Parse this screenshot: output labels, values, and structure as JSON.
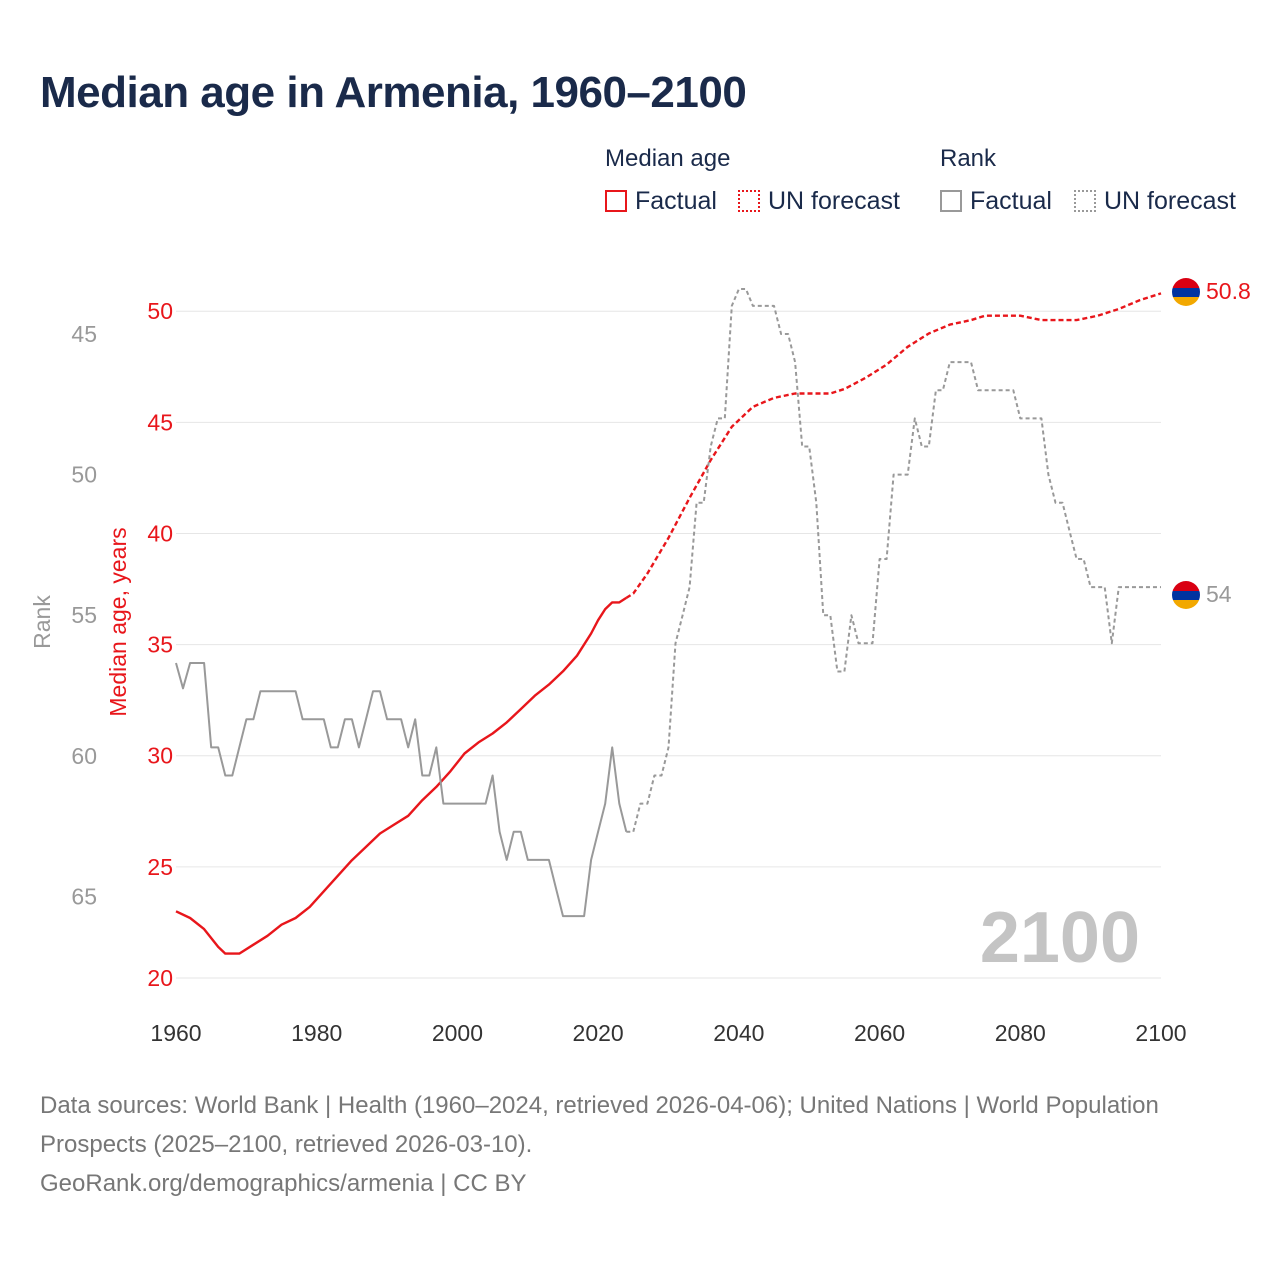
{
  "title": "Median age in Armenia, 1960–2100",
  "legend": {
    "median_heading": "Median age",
    "rank_heading": "Rank",
    "factual": "Factual",
    "forecast": "UN forecast"
  },
  "colors": {
    "median": "#e8161b",
    "rank": "#999999",
    "title": "#1a2a4a",
    "year_watermark": "#c4c4c4"
  },
  "chart_data": {
    "type": "line",
    "title": "Median age in Armenia, 1960–2100",
    "xlabel": "",
    "ylabel": "Median age, years",
    "ylabel_secondary": "Rank",
    "xlim": [
      1960,
      2100
    ],
    "ylim": [
      20,
      51
    ],
    "ylim_secondary_inverted": [
      43.4,
      67.9
    ],
    "x_ticks": [
      "1960",
      "1980",
      "2000",
      "2020",
      "2040",
      "2060",
      "2080",
      "2100"
    ],
    "y_ticks": [
      "20",
      "25",
      "30",
      "35",
      "40",
      "45",
      "50"
    ],
    "y_ticks_secondary": [
      "45",
      "50",
      "55",
      "60",
      "65"
    ],
    "year_watermark": "2100",
    "end_labels": {
      "median": "50.8",
      "rank": "54"
    },
    "factual_end_year": 2024,
    "series": [
      {
        "name": "Median age",
        "axis": "left",
        "points": [
          [
            1960,
            23
          ],
          [
            1962,
            22.7
          ],
          [
            1964,
            22.2
          ],
          [
            1966,
            21.4
          ],
          [
            1967,
            21.1
          ],
          [
            1969,
            21.1
          ],
          [
            1971,
            21.5
          ],
          [
            1973,
            21.9
          ],
          [
            1975,
            22.4
          ],
          [
            1977,
            22.7
          ],
          [
            1979,
            23.2
          ],
          [
            1981,
            23.9
          ],
          [
            1983,
            24.6
          ],
          [
            1985,
            25.3
          ],
          [
            1987,
            25.9
          ],
          [
            1989,
            26.5
          ],
          [
            1991,
            26.9
          ],
          [
            1993,
            27.3
          ],
          [
            1995,
            28
          ],
          [
            1997,
            28.6
          ],
          [
            1999,
            29.3
          ],
          [
            2001,
            30.1
          ],
          [
            2003,
            30.6
          ],
          [
            2005,
            31
          ],
          [
            2007,
            31.5
          ],
          [
            2009,
            32.1
          ],
          [
            2011,
            32.7
          ],
          [
            2013,
            33.2
          ],
          [
            2015,
            33.8
          ],
          [
            2017,
            34.5
          ],
          [
            2019,
            35.5
          ],
          [
            2020,
            36.1
          ],
          [
            2021,
            36.6
          ],
          [
            2022,
            36.9
          ],
          [
            2023,
            36.9
          ],
          [
            2024,
            37.1
          ],
          [
            2025,
            37.3
          ],
          [
            2027,
            38.2
          ],
          [
            2030,
            39.8
          ],
          [
            2033,
            41.6
          ],
          [
            2036,
            43.3
          ],
          [
            2039,
            44.8
          ],
          [
            2042,
            45.7
          ],
          [
            2045,
            46.1
          ],
          [
            2048,
            46.3
          ],
          [
            2050,
            46.3
          ],
          [
            2053,
            46.3
          ],
          [
            2055,
            46.5
          ],
          [
            2058,
            47
          ],
          [
            2061,
            47.6
          ],
          [
            2064,
            48.4
          ],
          [
            2067,
            49
          ],
          [
            2070,
            49.4
          ],
          [
            2073,
            49.6
          ],
          [
            2075,
            49.8
          ],
          [
            2078,
            49.8
          ],
          [
            2080,
            49.8
          ],
          [
            2083,
            49.6
          ],
          [
            2088,
            49.6
          ],
          [
            2091,
            49.8
          ],
          [
            2094,
            50.1
          ],
          [
            2097,
            50.5
          ],
          [
            2100,
            50.8
          ]
        ]
      },
      {
        "name": "Rank",
        "axis": "right",
        "points": [
          [
            1960,
            56.7
          ],
          [
            1961,
            57.6
          ],
          [
            1962,
            56.7
          ],
          [
            1963,
            56.7
          ],
          [
            1964,
            56.7
          ],
          [
            1965,
            59.7
          ],
          [
            1966,
            59.7
          ],
          [
            1967,
            60.7
          ],
          [
            1968,
            60.7
          ],
          [
            1969,
            59.7
          ],
          [
            1970,
            58.7
          ],
          [
            1971,
            58.7
          ],
          [
            1972,
            57.7
          ],
          [
            1973,
            57.7
          ],
          [
            1974,
            57.7
          ],
          [
            1975,
            57.7
          ],
          [
            1976,
            57.7
          ],
          [
            1977,
            57.7
          ],
          [
            1978,
            58.7
          ],
          [
            1979,
            58.7
          ],
          [
            1980,
            58.7
          ],
          [
            1981,
            58.7
          ],
          [
            1982,
            59.7
          ],
          [
            1983,
            59.7
          ],
          [
            1984,
            58.7
          ],
          [
            1985,
            58.7
          ],
          [
            1986,
            59.7
          ],
          [
            1987,
            58.7
          ],
          [
            1988,
            57.7
          ],
          [
            1989,
            57.7
          ],
          [
            1990,
            58.7
          ],
          [
            1991,
            58.7
          ],
          [
            1992,
            58.7
          ],
          [
            1993,
            59.7
          ],
          [
            1994,
            58.7
          ],
          [
            1995,
            60.7
          ],
          [
            1996,
            60.7
          ],
          [
            1997,
            59.7
          ],
          [
            1998,
            61.7
          ],
          [
            1999,
            61.7
          ],
          [
            2000,
            61.7
          ],
          [
            2001,
            61.7
          ],
          [
            2002,
            61.7
          ],
          [
            2003,
            61.7
          ],
          [
            2004,
            61.7
          ],
          [
            2005,
            60.7
          ],
          [
            2006,
            62.7
          ],
          [
            2007,
            63.7
          ],
          [
            2008,
            62.7
          ],
          [
            2009,
            62.7
          ],
          [
            2010,
            63.7
          ],
          [
            2011,
            63.7
          ],
          [
            2012,
            63.7
          ],
          [
            2013,
            63.7
          ],
          [
            2014,
            64.7
          ],
          [
            2015,
            65.7
          ],
          [
            2016,
            65.7
          ],
          [
            2017,
            65.7
          ],
          [
            2018,
            65.7
          ],
          [
            2019,
            63.7
          ],
          [
            2020,
            62.7
          ],
          [
            2021,
            61.7
          ],
          [
            2022,
            59.7
          ],
          [
            2023,
            61.7
          ],
          [
            2024,
            62.7
          ],
          [
            2025,
            62.7
          ],
          [
            2026,
            61.7
          ],
          [
            2027,
            61.7
          ],
          [
            2028,
            60.7
          ],
          [
            2029,
            60.7
          ],
          [
            2030,
            59.7
          ],
          [
            2031,
            56
          ],
          [
            2032,
            55
          ],
          [
            2033,
            54
          ],
          [
            2034,
            51
          ],
          [
            2035,
            51
          ],
          [
            2036,
            49
          ],
          [
            2037,
            48
          ],
          [
            2038,
            48
          ],
          [
            2039,
            44
          ],
          [
            2040,
            43.4
          ],
          [
            2041,
            43.4
          ],
          [
            2042,
            44
          ],
          [
            2043,
            44
          ],
          [
            2044,
            44
          ],
          [
            2045,
            44
          ],
          [
            2046,
            45
          ],
          [
            2047,
            45
          ],
          [
            2048,
            46
          ],
          [
            2049,
            49
          ],
          [
            2050,
            49
          ],
          [
            2051,
            51
          ],
          [
            2052,
            55
          ],
          [
            2053,
            55
          ],
          [
            2054,
            57
          ],
          [
            2055,
            57
          ],
          [
            2056,
            55
          ],
          [
            2057,
            56
          ],
          [
            2058,
            56
          ],
          [
            2059,
            56
          ],
          [
            2060,
            53
          ],
          [
            2061,
            53
          ],
          [
            2062,
            50
          ],
          [
            2063,
            50
          ],
          [
            2064,
            50
          ],
          [
            2065,
            48
          ],
          [
            2066,
            49
          ],
          [
            2067,
            49
          ],
          [
            2068,
            47
          ],
          [
            2069,
            47
          ],
          [
            2070,
            46
          ],
          [
            2071,
            46
          ],
          [
            2072,
            46
          ],
          [
            2073,
            46
          ],
          [
            2074,
            47
          ],
          [
            2075,
            47
          ],
          [
            2076,
            47
          ],
          [
            2077,
            47
          ],
          [
            2078,
            47
          ],
          [
            2079,
            47
          ],
          [
            2080,
            48
          ],
          [
            2081,
            48
          ],
          [
            2082,
            48
          ],
          [
            2083,
            48
          ],
          [
            2084,
            50
          ],
          [
            2085,
            51
          ],
          [
            2086,
            51
          ],
          [
            2087,
            52
          ],
          [
            2088,
            53
          ],
          [
            2089,
            53
          ],
          [
            2090,
            54
          ],
          [
            2091,
            54
          ],
          [
            2092,
            54
          ],
          [
            2093,
            56
          ],
          [
            2094,
            54
          ],
          [
            2095,
            54
          ],
          [
            2096,
            54
          ],
          [
            2097,
            54
          ],
          [
            2098,
            54
          ],
          [
            2099,
            54
          ],
          [
            2100,
            54
          ]
        ]
      }
    ]
  },
  "footer": {
    "line1": "Data sources: World Bank | Health (1960–2024, retrieved 2026-04-06); United Nations | World Population Prospects (2025–2100, retrieved 2026-03-10).",
    "line2": "GeoRank.org/demographics/armenia | CC BY"
  }
}
